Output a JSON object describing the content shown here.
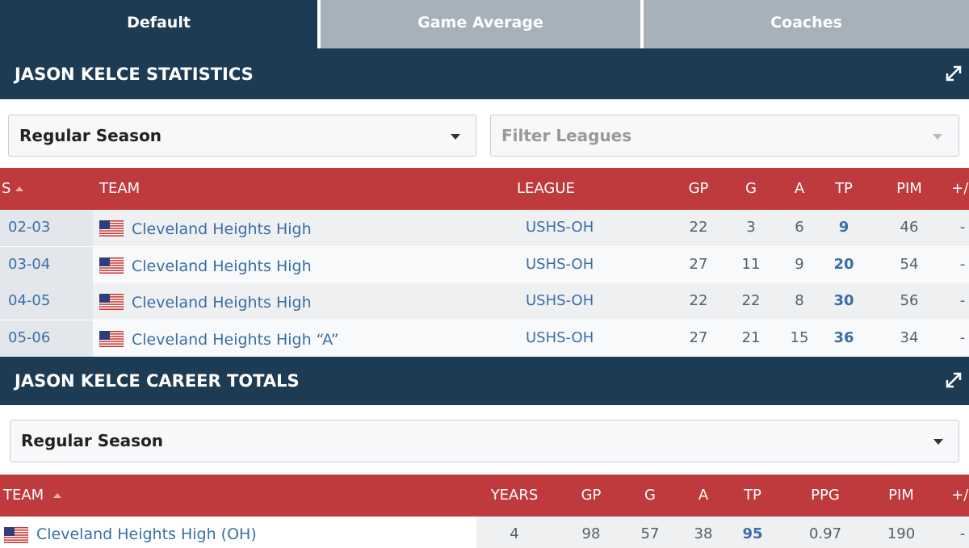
{
  "tabs": [
    "Default",
    "Game Average",
    "Coaches"
  ],
  "stats": {
    "title": "JASON KELCE STATISTICS",
    "season_select": "Regular Season",
    "league_filter": "Filter Leagues",
    "columns": [
      "S",
      "TEAM",
      "LEAGUE",
      "GP",
      "G",
      "A",
      "TP",
      "PIM",
      "+/-"
    ],
    "rows": [
      [
        "02-03",
        "Cleveland Heights High",
        "USHS-OH",
        "22",
        "3",
        "6",
        "9",
        "46",
        "-"
      ],
      [
        "03-04",
        "Cleveland Heights High",
        "USHS-OH",
        "27",
        "11",
        "9",
        "20",
        "54",
        "-"
      ],
      [
        "04-05",
        "Cleveland Heights High",
        "USHS-OH",
        "22",
        "22",
        "8",
        "30",
        "56",
        "-"
      ],
      [
        "05-06",
        "Cleveland Heights High “A”",
        "USHS-OH",
        "27",
        "21",
        "15",
        "36",
        "34",
        "-"
      ]
    ]
  },
  "career": {
    "title": "JASON KELCE CAREER TOTALS",
    "season_select": "Regular Season",
    "columns": [
      "TEAM",
      "YEARS",
      "GP",
      "G",
      "A",
      "TP",
      "PPG",
      "PIM",
      "+/-"
    ],
    "rows": [
      [
        "Cleveland Heights High (OH)",
        "4",
        "98",
        "57",
        "38",
        "95",
        "0.97",
        "190",
        "-"
      ]
    ]
  }
}
